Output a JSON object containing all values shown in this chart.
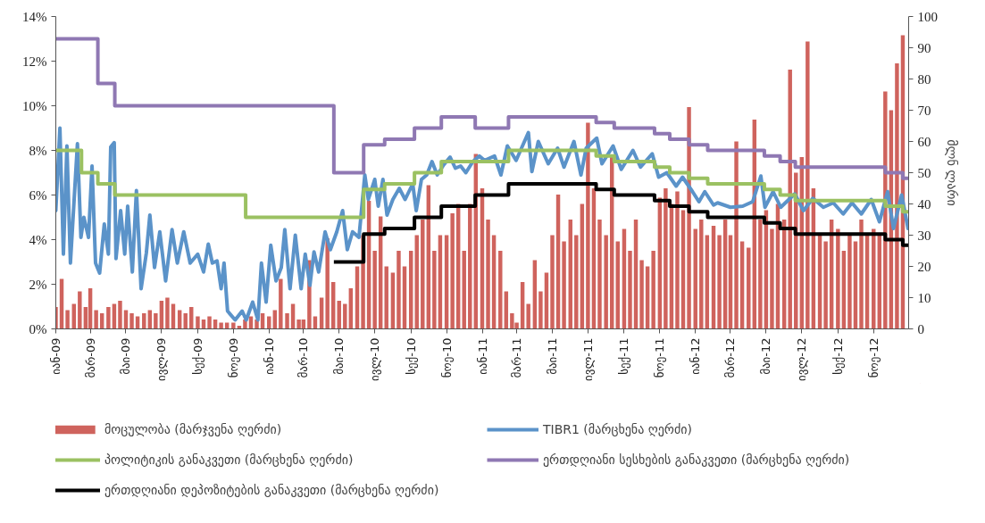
{
  "chart_data": {
    "type": "line",
    "y2label": "მლნ ლარი",
    "legend": "bottom",
    "xlim": [
      "2009-01-01",
      "2012-12-31"
    ],
    "xticks": [
      {
        "value": "2009-01-01",
        "label": "იან-09"
      },
      {
        "value": "2009-03-01",
        "label": "მარ-09"
      },
      {
        "value": "2009-05-01",
        "label": "მაი-09"
      },
      {
        "value": "2009-07-01",
        "label": "ივლ-09"
      },
      {
        "value": "2009-09-01",
        "label": "სექ-09"
      },
      {
        "value": "2009-11-01",
        "label": "ნოე-09"
      },
      {
        "value": "2010-01-01",
        "label": "იან-10"
      },
      {
        "value": "2010-03-01",
        "label": "მარ-10"
      },
      {
        "value": "2010-05-01",
        "label": "მაი-10"
      },
      {
        "value": "2010-07-01",
        "label": "ივლ-10"
      },
      {
        "value": "2010-09-01",
        "label": "სექ-10"
      },
      {
        "value": "2010-11-01",
        "label": "ნოე-10"
      },
      {
        "value": "2011-01-01",
        "label": "იან-11"
      },
      {
        "value": "2011-03-01",
        "label": "მარ-11"
      },
      {
        "value": "2011-05-01",
        "label": "მაი-11"
      },
      {
        "value": "2011-07-01",
        "label": "ივლ-11"
      },
      {
        "value": "2011-09-01",
        "label": "სექ-11"
      },
      {
        "value": "2011-11-01",
        "label": "ნოე-11"
      },
      {
        "value": "2012-01-01",
        "label": "იან-12"
      },
      {
        "value": "2012-03-01",
        "label": "მარ-12"
      },
      {
        "value": "2012-05-01",
        "label": "მაი-12"
      },
      {
        "value": "2012-07-01",
        "label": "ივლ-12"
      },
      {
        "value": "2012-09-01",
        "label": "სექ-12"
      },
      {
        "value": "2012-11-01",
        "label": "ნოე-12"
      }
    ],
    "ylim": [
      0,
      14
    ],
    "yticks": [
      {
        "value": 0,
        "label": "0%"
      },
      {
        "value": 2,
        "label": "2%"
      },
      {
        "value": 4,
        "label": "4%"
      },
      {
        "value": 6,
        "label": "6%"
      },
      {
        "value": 8,
        "label": "8%"
      },
      {
        "value": 10,
        "label": "10%"
      },
      {
        "value": 12,
        "label": "12%"
      },
      {
        "value": 14,
        "label": "14%"
      }
    ],
    "y2lim": [
      0,
      100
    ],
    "y2ticks": [
      0,
      10,
      20,
      30,
      40,
      50,
      60,
      70,
      80,
      90,
      100
    ],
    "series": [
      {
        "name": "მოცულობა (მარჯვენა ღერძი)",
        "type": "bar",
        "axis": "y2",
        "color": "#cf635d",
        "x": [
          "2009-01-01",
          "2009-01-11",
          "2009-01-21",
          "2009-02-01",
          "2009-02-11",
          "2009-02-21",
          "2009-03-01",
          "2009-03-11",
          "2009-03-21",
          "2009-04-01",
          "2009-04-11",
          "2009-04-21",
          "2009-05-01",
          "2009-05-11",
          "2009-05-21",
          "2009-06-01",
          "2009-06-11",
          "2009-06-21",
          "2009-07-01",
          "2009-07-11",
          "2009-07-21",
          "2009-08-01",
          "2009-08-11",
          "2009-08-21",
          "2009-09-01",
          "2009-09-11",
          "2009-09-21",
          "2009-10-01",
          "2009-10-11",
          "2009-10-21",
          "2009-11-01",
          "2009-11-11",
          "2009-11-21",
          "2009-12-01",
          "2009-12-11",
          "2009-12-21",
          "2010-01-01",
          "2010-01-11",
          "2010-01-21",
          "2010-02-01",
          "2010-02-11",
          "2010-02-21",
          "2010-03-01",
          "2010-03-11",
          "2010-03-21",
          "2010-04-01",
          "2010-04-11",
          "2010-04-21",
          "2010-05-01",
          "2010-05-11",
          "2010-05-21",
          "2010-06-01",
          "2010-06-11",
          "2010-06-21",
          "2010-07-01",
          "2010-07-11",
          "2010-07-21",
          "2010-08-01",
          "2010-08-11",
          "2010-08-21",
          "2010-09-01",
          "2010-09-11",
          "2010-09-21",
          "2010-10-01",
          "2010-10-11",
          "2010-10-21",
          "2010-11-01",
          "2010-11-11",
          "2010-11-21",
          "2010-12-01",
          "2010-12-11",
          "2010-12-21",
          "2011-01-01",
          "2011-01-11",
          "2011-01-21",
          "2011-02-01",
          "2011-02-11",
          "2011-02-21",
          "2011-03-01",
          "2011-03-11",
          "2011-03-21",
          "2011-04-01",
          "2011-04-11",
          "2011-04-21",
          "2011-05-01",
          "2011-05-11",
          "2011-05-21",
          "2011-06-01",
          "2011-06-11",
          "2011-06-21",
          "2011-07-01",
          "2011-07-11",
          "2011-07-21",
          "2011-08-01",
          "2011-08-11",
          "2011-08-21",
          "2011-09-01",
          "2011-09-11",
          "2011-09-21",
          "2011-10-01",
          "2011-10-11",
          "2011-10-21",
          "2011-11-01",
          "2011-11-11",
          "2011-11-21",
          "2011-12-01",
          "2011-12-11",
          "2011-12-21",
          "2012-01-01",
          "2012-01-11",
          "2012-01-21",
          "2012-02-01",
          "2012-02-11",
          "2012-02-21",
          "2012-03-01",
          "2012-03-11",
          "2012-03-21",
          "2012-04-01",
          "2012-04-11",
          "2012-04-21",
          "2012-05-01",
          "2012-05-11",
          "2012-05-21",
          "2012-06-01",
          "2012-06-11",
          "2012-06-21",
          "2012-07-01",
          "2012-07-11",
          "2012-07-21",
          "2012-08-01",
          "2012-08-11",
          "2012-08-21",
          "2012-09-01",
          "2012-09-11",
          "2012-09-21",
          "2012-10-01",
          "2012-10-11",
          "2012-10-21",
          "2012-11-01",
          "2012-11-11",
          "2012-11-21",
          "2012-12-01",
          "2012-12-11",
          "2012-12-21"
        ],
        "values": [
          7,
          16,
          6,
          8,
          12,
          7,
          13,
          6,
          5,
          7,
          8,
          9,
          6,
          5,
          4,
          5,
          6,
          5,
          9,
          10,
          8,
          6,
          5,
          7,
          4,
          3,
          4,
          3,
          2,
          2,
          2,
          1,
          3,
          4,
          3,
          5,
          4,
          6,
          16,
          5,
          8,
          3,
          3,
          22,
          4,
          10,
          29,
          15,
          9,
          8,
          13,
          20,
          30,
          41,
          25,
          36,
          20,
          18,
          25,
          20,
          25,
          30,
          35,
          46,
          25,
          30,
          30,
          37,
          40,
          25,
          40,
          56,
          45,
          35,
          30,
          25,
          12,
          5,
          2,
          15,
          8,
          22,
          12,
          18,
          30,
          43,
          28,
          35,
          30,
          40,
          66,
          45,
          35,
          30,
          55,
          28,
          32,
          25,
          35,
          22,
          20,
          25,
          42,
          45,
          40,
          44,
          38,
          71,
          32,
          35,
          30,
          33,
          30,
          35,
          30,
          60,
          28,
          26,
          67,
          35,
          38,
          32,
          40,
          35,
          83,
          50,
          55,
          92,
          45,
          30,
          28,
          35,
          32,
          25,
          30,
          28,
          35,
          30,
          32,
          30,
          76,
          70,
          85,
          94
        ]
      },
      {
        "name": "TIBR1 (მარცხენა ღერძი)",
        "color": "#5b93c9",
        "x": [
          "2009-01-01",
          "2009-01-08",
          "2009-01-14",
          "2009-01-20",
          "2009-01-26",
          "2009-02-07",
          "2009-02-13",
          "2009-02-18",
          "2009-02-26",
          "2009-03-04",
          "2009-03-10",
          "2009-03-17",
          "2009-03-25",
          "2009-04-01",
          "2009-04-05",
          "2009-04-11",
          "2009-04-14",
          "2009-04-22",
          "2009-04-29",
          "2009-05-04",
          "2009-05-12",
          "2009-05-19",
          "2009-05-27",
          "2009-06-05",
          "2009-06-11",
          "2009-06-19",
          "2009-06-28",
          "2009-07-08",
          "2009-07-19",
          "2009-07-28",
          "2009-08-08",
          "2009-08-19",
          "2009-09-01",
          "2009-09-11",
          "2009-09-19",
          "2009-09-26",
          "2009-10-04",
          "2009-10-11",
          "2009-10-16",
          "2009-10-22",
          "2009-11-04",
          "2009-11-16",
          "2009-11-23",
          "2009-12-04",
          "2009-12-13",
          "2009-12-19",
          "2009-12-27",
          "2010-01-04",
          "2010-01-13",
          "2010-01-22",
          "2010-01-28",
          "2010-02-06",
          "2010-02-15",
          "2010-02-25",
          "2010-03-04",
          "2010-03-12",
          "2010-03-19",
          "2010-03-27",
          "2010-04-07",
          "2010-04-16",
          "2010-04-27",
          "2010-05-07",
          "2010-05-15",
          "2010-05-24",
          "2010-06-04",
          "2010-06-14",
          "2010-06-20",
          "2010-07-01",
          "2010-07-07",
          "2010-07-15",
          "2010-07-22",
          "2010-08-01",
          "2010-08-12",
          "2010-08-22",
          "2010-09-04",
          "2010-09-10",
          "2010-09-19",
          "2010-09-28",
          "2010-10-07",
          "2010-10-16",
          "2010-10-27",
          "2010-11-07",
          "2010-11-16",
          "2010-11-25",
          "2010-12-04",
          "2010-12-16",
          "2010-12-27",
          "2011-01-05",
          "2011-01-22",
          "2011-02-02",
          "2011-02-13",
          "2011-02-28",
          "2011-03-21",
          "2011-03-27",
          "2011-04-07",
          "2011-04-24",
          "2011-05-10",
          "2011-05-21",
          "2011-06-07",
          "2011-06-19",
          "2011-06-28",
          "2011-07-16",
          "2011-07-25",
          "2011-08-13",
          "2011-08-27",
          "2011-09-16",
          "2011-09-29",
          "2011-10-19",
          "2011-10-30",
          "2011-11-13",
          "2011-11-29",
          "2011-12-10",
          "2011-12-27",
          "2012-01-07",
          "2012-01-17",
          "2012-02-01",
          "2012-02-08",
          "2012-03-01",
          "2012-03-22",
          "2012-04-08",
          "2012-04-22",
          "2012-04-29",
          "2012-05-13",
          "2012-05-26",
          "2012-06-19",
          "2012-07-04",
          "2012-07-20",
          "2012-08-07",
          "2012-08-24",
          "2012-09-10",
          "2012-09-25",
          "2012-10-11",
          "2012-10-28",
          "2012-11-11",
          "2012-11-25",
          "2012-12-05",
          "2012-12-19",
          "2012-12-30"
        ],
        "values": [
          5.3,
          9.0,
          3.35,
          8.2,
          2.95,
          8.3,
          4.1,
          5.0,
          4.1,
          7.3,
          2.95,
          2.5,
          4.7,
          3.35,
          8.15,
          8.35,
          3.15,
          5.3,
          3.35,
          5.5,
          2.55,
          6.2,
          1.8,
          3.4,
          5.1,
          2.75,
          4.35,
          2.15,
          4.45,
          2.95,
          4.35,
          2.95,
          3.35,
          2.55,
          3.8,
          2.95,
          3.05,
          1.8,
          2.95,
          0.8,
          0.4,
          0.8,
          0.4,
          1.2,
          0.4,
          2.95,
          1.2,
          3.75,
          2.15,
          2.75,
          4.45,
          1.8,
          4.2,
          1.8,
          3.35,
          1.95,
          3.45,
          2.55,
          4.35,
          3.55,
          4.35,
          5.3,
          3.55,
          4.35,
          4.1,
          6.9,
          5.8,
          6.7,
          5.5,
          6.7,
          5.1,
          5.8,
          6.3,
          5.8,
          6.5,
          5.3,
          6.7,
          6.9,
          7.5,
          6.9,
          7.35,
          7.7,
          7.2,
          7.3,
          7.0,
          7.5,
          7.75,
          7.55,
          7.75,
          6.9,
          8.2,
          7.55,
          8.8,
          7.05,
          8.4,
          7.4,
          8.1,
          7.25,
          8.4,
          6.9,
          8.1,
          8.55,
          7.4,
          8.2,
          7.15,
          8.0,
          7.25,
          7.85,
          6.8,
          7.0,
          6.4,
          6.8,
          6.15,
          5.7,
          6.15,
          5.55,
          5.65,
          5.45,
          5.5,
          5.7,
          6.85,
          5.45,
          6.15,
          5.45,
          6.05,
          5.3,
          5.85,
          5.45,
          5.65,
          5.15,
          5.65,
          5.15,
          5.8,
          4.8,
          6.15,
          4.5,
          6.0,
          4.5
        ]
      },
      {
        "name": "პოლიტიკის განაკვეთი (მარცხენა ღერძი)",
        "type": "step",
        "color": "#9bc162",
        "x": [
          "2009-01-01",
          "2009-02-14",
          "2009-03-14",
          "2009-04-12",
          "2009-11-22",
          "2010-06-12",
          "2010-07-18",
          "2010-09-07",
          "2010-10-23",
          "2011-02-15",
          "2011-07-15",
          "2011-08-15",
          "2011-10-23",
          "2011-11-18",
          "2011-12-21",
          "2012-01-22",
          "2012-04-28",
          "2012-05-25",
          "2012-06-20",
          "2012-11-21",
          "2012-12-21",
          "2012-12-31"
        ],
        "values": [
          8,
          7,
          6.5,
          6,
          5,
          6.25,
          6.5,
          7,
          7.5,
          8,
          7.75,
          7.5,
          7.25,
          7,
          6.75,
          6.5,
          6.25,
          6,
          5.75,
          5.5,
          5.25,
          5.25
        ]
      },
      {
        "name": "ერთდღიანი სესხების განაკვეთი (მარცხენა ღერძი)",
        "type": "step",
        "color": "#8f78b3",
        "x": [
          "2009-01-01",
          "2009-03-14",
          "2009-04-12",
          "2010-04-22",
          "2010-06-12",
          "2010-07-18",
          "2010-09-07",
          "2010-10-23",
          "2010-12-20",
          "2011-02-15",
          "2011-07-15",
          "2011-08-15",
          "2011-10-23",
          "2011-11-18",
          "2011-12-21",
          "2012-01-22",
          "2012-04-28",
          "2012-05-25",
          "2012-06-20",
          "2012-11-21",
          "2012-12-21",
          "2012-12-31"
        ],
        "values": [
          13,
          11,
          10,
          7,
          8.25,
          8.5,
          9,
          9.5,
          9,
          9.5,
          9.25,
          9,
          8.75,
          8.5,
          8.25,
          8,
          7.75,
          7.5,
          7.25,
          7,
          6.75,
          6.75
        ]
      },
      {
        "name": "ერთდღიანი დეპოზიტების განაკვეთი (მარცხენა ღერძი)",
        "type": "step",
        "color": "#000000",
        "x": [
          "2010-04-22",
          "2010-06-12",
          "2010-07-18",
          "2010-09-07",
          "2010-10-23",
          "2010-12-20",
          "2011-02-15",
          "2011-07-15",
          "2011-08-15",
          "2011-10-23",
          "2011-11-18",
          "2011-12-21",
          "2012-01-22",
          "2012-04-28",
          "2012-05-25",
          "2012-06-20",
          "2012-11-21",
          "2012-12-21",
          "2012-12-31"
        ],
        "values": [
          3,
          4.25,
          4.5,
          5,
          5.5,
          6,
          6.5,
          6.25,
          6,
          5.75,
          5.5,
          5.25,
          5,
          4.75,
          4.5,
          4.25,
          4,
          3.75,
          3.75
        ]
      }
    ]
  }
}
